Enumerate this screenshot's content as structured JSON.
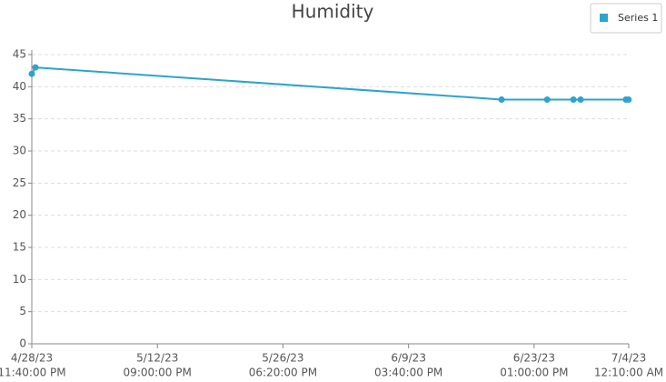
{
  "chart_data": {
    "type": "line",
    "title": "Humidity",
    "x": [
      "2023-04-28T23:40",
      "2023-04-29T09:20",
      "2023-06-19T22:40",
      "2023-06-24T23:40",
      "2023-06-27T21:20",
      "2023-06-28T16:30",
      "2023-07-03T16:40",
      "2023-07-03T23:40"
    ],
    "series": [
      {
        "name": "Series 1",
        "color": "#2ea3cc",
        "values": [
          42,
          43,
          38,
          38,
          38,
          38,
          38,
          38
        ]
      }
    ],
    "xlim": [
      "2023-04-28T23:40",
      "2023-07-04T00:10"
    ],
    "xticks": [
      {
        "value": "2023-04-28T23:40",
        "label": [
          "4/28/23",
          "11:40:00 PM"
        ]
      },
      {
        "value": "2023-05-12T21:00",
        "label": [
          "5/12/23",
          "09:00:00 PM"
        ]
      },
      {
        "value": "2023-05-26T18:20",
        "label": [
          "5/26/23",
          "06:20:00 PM"
        ]
      },
      {
        "value": "2023-06-09T15:40",
        "label": [
          "6/9/23",
          "03:40:00 PM"
        ]
      },
      {
        "value": "2023-06-23T13:00",
        "label": [
          "6/23/23",
          "01:00:00 PM"
        ]
      },
      {
        "value": "2023-07-04T00:10",
        "label": [
          "7/4/23",
          "12:10:00 AM"
        ]
      }
    ],
    "ylim": [
      0,
      45
    ],
    "yticks": [
      0,
      5,
      10,
      15,
      20,
      25,
      30,
      35,
      40,
      45
    ],
    "grid": true,
    "legend": "top-right"
  }
}
